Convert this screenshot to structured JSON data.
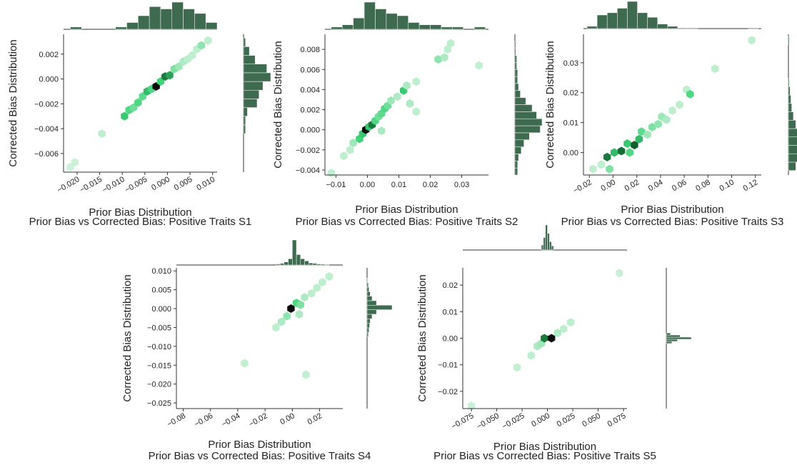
{
  "colors": {
    "hex_light": "#dcf4e2",
    "hex_mid": "#3fd47a",
    "hex_dark": "#0f5a2a",
    "hex_black": "#0a0a0a",
    "marginal": "#3e6b4f"
  },
  "chart_data": [
    {
      "type": "hexbin",
      "caption": "Prior Bias vs Corrected Bias: Positive Traits S1",
      "xlabel": "Prior Bias Distribution",
      "ylabel": "Corrected Bias Distribution",
      "xlim": [
        -0.023,
        0.011
      ],
      "ylim": [
        -0.0075,
        0.0036
      ],
      "xticks": [
        -0.02,
        -0.015,
        -0.01,
        -0.005,
        0.0,
        0.005,
        0.01
      ],
      "xtick_labels": [
        "−0.020",
        "−0.015",
        "−0.010",
        "−0.005",
        "0.000",
        "0.005",
        "0.010"
      ],
      "yticks": [
        -0.006,
        -0.004,
        -0.002,
        0.0,
        0.002
      ],
      "ytick_labels": [
        "−0.006",
        "−0.004",
        "−0.002",
        "0.000",
        "0.002"
      ],
      "x_rotated": true,
      "points": [
        {
          "x": -0.0215,
          "y": -0.0071,
          "d": 0.05
        },
        {
          "x": -0.0205,
          "y": -0.0067,
          "d": 0.05
        },
        {
          "x": -0.0145,
          "y": -0.0044,
          "d": 0.1
        },
        {
          "x": -0.0095,
          "y": -0.003,
          "d": 0.55
        },
        {
          "x": -0.0085,
          "y": -0.0025,
          "d": 0.45
        },
        {
          "x": -0.0075,
          "y": -0.0023,
          "d": 0.35
        },
        {
          "x": -0.0065,
          "y": -0.0019,
          "d": 0.45
        },
        {
          "x": -0.0055,
          "y": -0.0014,
          "d": 0.4
        },
        {
          "x": -0.0045,
          "y": -0.001,
          "d": 0.6
        },
        {
          "x": -0.0035,
          "y": -0.0008,
          "d": 0.45
        },
        {
          "x": -0.0025,
          "y": -0.0006,
          "d": 1.0
        },
        {
          "x": -0.0015,
          "y": -0.0002,
          "d": 0.5
        },
        {
          "x": -0.0005,
          "y": 0.0002,
          "d": 0.85
        },
        {
          "x": 0.0005,
          "y": 0.0003,
          "d": 0.7
        },
        {
          "x": 0.0015,
          "y": 0.0008,
          "d": 0.3
        },
        {
          "x": 0.0025,
          "y": 0.001,
          "d": 0.2
        },
        {
          "x": 0.0035,
          "y": 0.0014,
          "d": 0.15
        },
        {
          "x": 0.0045,
          "y": 0.0016,
          "d": 0.1
        },
        {
          "x": 0.0055,
          "y": 0.0019,
          "d": 0.1
        },
        {
          "x": 0.0065,
          "y": 0.0024,
          "d": 0.1
        },
        {
          "x": 0.0075,
          "y": 0.0027,
          "d": 0.25
        },
        {
          "x": 0.009,
          "y": 0.0031,
          "d": 0.1
        }
      ],
      "x_hist": {
        "edges": [
          -0.0215,
          -0.019,
          -0.0165,
          -0.014,
          -0.0115,
          -0.009,
          -0.0065,
          -0.004,
          -0.0015,
          0.001,
          0.0035,
          0.006,
          0.0085,
          0.011
        ],
        "counts": [
          1,
          0,
          0,
          0,
          1,
          3,
          6,
          10,
          9,
          12,
          9,
          7,
          3
        ]
      },
      "y_hist": {
        "edges": [
          -0.0072,
          -0.0065,
          -0.0058,
          -0.0051,
          -0.0044,
          -0.0037,
          -0.003,
          -0.0023,
          -0.0016,
          -0.0009,
          -0.0002,
          0.0005,
          0.0012,
          0.0019,
          0.0026,
          0.0033
        ],
        "counts": [
          0,
          0,
          0,
          0,
          0.2,
          0.2,
          0.4,
          1.4,
          1.6,
          2,
          2.8,
          2.4,
          1.2,
          0.6,
          0.2
        ]
      }
    },
    {
      "type": "hexbin",
      "caption": "Prior Bias vs Corrected Bias: Positive Traits S2",
      "xlabel": "Prior Bias Distribution",
      "ylabel": "Corrected Bias Distribution",
      "xlim": [
        -0.0135,
        0.0385
      ],
      "ylim": [
        -0.0045,
        0.0095
      ],
      "xticks": [
        -0.01,
        0.0,
        0.01,
        0.02,
        0.03
      ],
      "xtick_labels": [
        "−0.01",
        "0.00",
        "0.01",
        "0.02",
        "0.03"
      ],
      "yticks": [
        -0.004,
        -0.002,
        0.0,
        0.002,
        0.004,
        0.006,
        0.008
      ],
      "ytick_labels": [
        "−0.004",
        "−0.002",
        "0.000",
        "0.002",
        "0.004",
        "0.006",
        "0.008"
      ],
      "x_rotated": false,
      "points": [
        {
          "x": -0.0115,
          "y": -0.0043,
          "d": 0.1
        },
        {
          "x": -0.0075,
          "y": -0.0026,
          "d": 0.1
        },
        {
          "x": -0.0055,
          "y": -0.002,
          "d": 0.1
        },
        {
          "x": -0.0045,
          "y": -0.0013,
          "d": 0.2
        },
        {
          "x": -0.0025,
          "y": -0.0009,
          "d": 0.5
        },
        {
          "x": -0.0015,
          "y": -0.0004,
          "d": 0.55
        },
        {
          "x": -0.0005,
          "y": 0.0,
          "d": 1.0
        },
        {
          "x": 0.0005,
          "y": 0.0003,
          "d": 0.55
        },
        {
          "x": 0.0015,
          "y": 0.0005,
          "d": 0.85
        },
        {
          "x": 0.0025,
          "y": 0.0009,
          "d": 0.45
        },
        {
          "x": 0.0035,
          "y": 0.0013,
          "d": 0.35
        },
        {
          "x": 0.0045,
          "y": 0.0016,
          "d": 0.4
        },
        {
          "x": 0.0055,
          "y": 0.0021,
          "d": 0.45
        },
        {
          "x": 0.0065,
          "y": 0.0024,
          "d": 0.35
        },
        {
          "x": 0.0075,
          "y": 0.0029,
          "d": 0.2
        },
        {
          "x": 0.0095,
          "y": 0.0033,
          "d": 0.15
        },
        {
          "x": 0.0115,
          "y": 0.0039,
          "d": 0.55
        },
        {
          "x": 0.0125,
          "y": 0.0044,
          "d": 0.15
        },
        {
          "x": 0.0135,
          "y": 0.0026,
          "d": 0.15
        },
        {
          "x": 0.0155,
          "y": 0.0018,
          "d": 0.1
        },
        {
          "x": 0.0045,
          "y": -0.0001,
          "d": 0.15
        },
        {
          "x": 0.0155,
          "y": 0.0048,
          "d": 0.1
        },
        {
          "x": 0.0225,
          "y": 0.007,
          "d": 0.25
        },
        {
          "x": 0.0245,
          "y": 0.0072,
          "d": 0.15
        },
        {
          "x": 0.0255,
          "y": 0.008,
          "d": 0.1
        },
        {
          "x": 0.0265,
          "y": 0.0086,
          "d": 0.1
        },
        {
          "x": 0.0355,
          "y": 0.0064,
          "d": 0.08
        }
      ],
      "x_hist": {
        "edges": [
          -0.0115,
          -0.008,
          -0.0045,
          -0.001,
          0.0025,
          0.006,
          0.0095,
          0.013,
          0.0165,
          0.02,
          0.0235,
          0.027,
          0.0305,
          0.034,
          0.0375
        ],
        "counts": [
          1,
          2,
          5,
          12,
          9,
          7,
          6,
          3,
          2,
          2,
          1,
          1,
          0,
          1
        ]
      },
      "y_hist": {
        "edges": [
          -0.0045,
          -0.0038,
          -0.0031,
          -0.0024,
          -0.0017,
          -0.001,
          -0.0003,
          0.0004,
          0.0011,
          0.0018,
          0.0025,
          0.0032,
          0.0039,
          0.0046,
          0.0053,
          0.006,
          0.0067,
          0.0074,
          0.0081,
          0.0088
        ],
        "counts": [
          0.3,
          0.3,
          0.4,
          0.7,
          1.0,
          1.6,
          2.8,
          3.0,
          2.4,
          1.9,
          1.2,
          0.6,
          0.4,
          0.3,
          0.3,
          0.2,
          0.2,
          0.1,
          0.1
        ]
      }
    },
    {
      "type": "hexbin",
      "caption": "Prior Bias vs Corrected Bias: Positive Traits S3",
      "xlabel": "Prior Bias Distribution",
      "ylabel": "Corrected Bias Distribution",
      "xlim": [
        -0.025,
        0.125
      ],
      "ylim": [
        -0.0075,
        0.0395
      ],
      "xticks": [
        -0.02,
        0.0,
        0.02,
        0.04,
        0.06,
        0.08,
        0.1,
        0.12
      ],
      "xtick_labels": [
        "−0.02",
        "0.00",
        "0.02",
        "0.04",
        "0.06",
        "0.08",
        "0.10",
        "0.12"
      ],
      "yticks": [
        0.0,
        0.01,
        0.02,
        0.03
      ],
      "ytick_labels": [
        "0.00",
        "0.01",
        "0.02",
        "0.03"
      ],
      "x_rotated": true,
      "points": [
        {
          "x": -0.017,
          "y": -0.0055,
          "d": 0.1
        },
        {
          "x": -0.01,
          "y": -0.004,
          "d": 0.1
        },
        {
          "x": -0.003,
          "y": -0.0055,
          "d": 0.3
        },
        {
          "x": -0.005,
          "y": -0.0015,
          "d": 0.85
        },
        {
          "x": 0.001,
          "y": 0.0,
          "d": 0.6
        },
        {
          "x": 0.007,
          "y": 0.0005,
          "d": 0.9
        },
        {
          "x": 0.012,
          "y": 0.003,
          "d": 0.55
        },
        {
          "x": 0.014,
          "y": 0.0,
          "d": 0.45
        },
        {
          "x": 0.018,
          "y": 0.0025,
          "d": 0.95
        },
        {
          "x": 0.022,
          "y": 0.0045,
          "d": 0.6
        },
        {
          "x": 0.024,
          "y": 0.007,
          "d": 0.4
        },
        {
          "x": 0.029,
          "y": 0.006,
          "d": 0.2
        },
        {
          "x": 0.033,
          "y": 0.0085,
          "d": 0.3
        },
        {
          "x": 0.038,
          "y": 0.0095,
          "d": 0.25
        },
        {
          "x": 0.041,
          "y": 0.012,
          "d": 0.2
        },
        {
          "x": 0.045,
          "y": 0.011,
          "d": 0.15
        },
        {
          "x": 0.05,
          "y": 0.014,
          "d": 0.1
        },
        {
          "x": 0.056,
          "y": 0.016,
          "d": 0.1
        },
        {
          "x": 0.062,
          "y": 0.021,
          "d": 0.1
        },
        {
          "x": 0.065,
          "y": 0.0195,
          "d": 0.45
        },
        {
          "x": 0.086,
          "y": 0.028,
          "d": 0.1
        },
        {
          "x": 0.117,
          "y": 0.0375,
          "d": 0.1
        }
      ],
      "x_hist": {
        "edges": [
          -0.022,
          -0.0135,
          -0.005,
          0.0035,
          0.012,
          0.0205,
          0.029,
          0.0375,
          0.046,
          0.0545,
          0.063,
          0.0715,
          0.08,
          0.0885,
          0.097,
          0.1055,
          0.114,
          0.1225
        ],
        "counts": [
          1,
          6,
          7,
          9,
          12,
          7,
          5,
          2,
          1,
          0.3,
          0.3,
          0,
          0,
          0,
          0,
          0,
          0.3
        ]
      },
      "y_hist": {
        "edges": [
          -0.006,
          -0.0032,
          -0.0004,
          0.0024,
          0.0052,
          0.008,
          0.0108,
          0.0136,
          0.0164,
          0.0192,
          0.022,
          0.0248,
          0.0276,
          0.0304,
          0.0332,
          0.036,
          0.0388
        ],
        "counts": [
          0.9,
          2.4,
          3.3,
          2.4,
          1.2,
          0.9,
          0.6,
          0.4,
          0.3,
          0.2,
          0.1,
          0,
          0,
          0,
          0,
          0.1
        ]
      }
    },
    {
      "type": "hexbin",
      "caption": "Prior Bias vs Corrected Bias: Positive Traits S4",
      "xlabel": "Prior Bias Distribution",
      "ylabel": "Corrected Bias Distribution",
      "xlim": [
        -0.085,
        0.037
      ],
      "ylim": [
        -0.0265,
        0.0108
      ],
      "xticks": [
        -0.08,
        -0.06,
        -0.04,
        -0.02,
        0.0,
        0.02
      ],
      "xtick_labels": [
        "−0.08",
        "−0.06",
        "−0.04",
        "−0.02",
        "0.00",
        "0.02"
      ],
      "yticks": [
        -0.025,
        -0.02,
        -0.015,
        -0.01,
        -0.005,
        0.0,
        0.005,
        0.01
      ],
      "ytick_labels": [
        "−0.025",
        "−0.020",
        "−0.015",
        "−0.010",
        "−0.005",
        "0.000",
        "0.005",
        "0.010"
      ],
      "x_rotated": true,
      "points": [
        {
          "x": -0.035,
          "y": -0.0145,
          "d": 0.08
        },
        {
          "x": -0.012,
          "y": -0.005,
          "d": 0.1
        },
        {
          "x": -0.008,
          "y": -0.0035,
          "d": 0.15
        },
        {
          "x": -0.004,
          "y": -0.002,
          "d": 0.25
        },
        {
          "x": -0.001,
          "y": 0.0,
          "d": 1.0
        },
        {
          "x": 0.003,
          "y": 0.0015,
          "d": 0.45
        },
        {
          "x": 0.006,
          "y": 0.001,
          "d": 0.3
        },
        {
          "x": 0.005,
          "y": -0.0015,
          "d": 0.15
        },
        {
          "x": 0.009,
          "y": 0.003,
          "d": 0.15
        },
        {
          "x": 0.014,
          "y": 0.004,
          "d": 0.1
        },
        {
          "x": 0.018,
          "y": 0.0055,
          "d": 0.1
        },
        {
          "x": 0.022,
          "y": 0.007,
          "d": 0.1
        },
        {
          "x": 0.027,
          "y": 0.0085,
          "d": 0.1
        },
        {
          "x": 0.01,
          "y": -0.0175,
          "d": 0.08
        }
      ],
      "x_hist": {
        "edges": [
          -0.012,
          -0.009,
          -0.006,
          -0.003,
          0,
          0.003,
          0.006,
          0.009,
          0.012,
          0.015,
          0.018,
          0.021,
          0.024,
          0.027
        ],
        "counts": [
          0.5,
          0.8,
          1.5,
          3,
          12,
          5,
          3,
          2,
          1,
          0.8,
          0.5,
          0.4,
          0.3
        ]
      },
      "y_hist": {
        "edges": [
          -0.0075,
          -0.0063,
          -0.0051,
          -0.0039,
          -0.0027,
          -0.0015,
          -0.0003,
          0.0009,
          0.0021,
          0.0033,
          0.0045,
          0.0057,
          0.0069,
          0.0081
        ],
        "counts": [
          0.2,
          0.3,
          0.4,
          0.5,
          0.8,
          1.5,
          4,
          1.5,
          0.8,
          0.5,
          0.3,
          0.2,
          0.1
        ]
      }
    },
    {
      "type": "hexbin",
      "caption": "Prior Bias vs Corrected Bias: Positive Traits S5",
      "xlabel": "Prior Bias Distribution",
      "ylabel": "Corrected Bias Distribution",
      "xlim": [
        -0.0835,
        0.0785
      ],
      "ylim": [
        -0.0265,
        0.0265
      ],
      "xticks": [
        -0.075,
        -0.05,
        -0.025,
        0.0,
        0.025,
        0.05,
        0.075
      ],
      "xtick_labels": [
        "−0.075",
        "−0.050",
        "−0.025",
        "0.000",
        "0.025",
        "0.050",
        "0.075"
      ],
      "yticks": [
        -0.02,
        -0.01,
        0.0,
        0.01,
        0.02
      ],
      "ytick_labels": [
        "−0.02",
        "−0.01",
        "0.00",
        "0.01",
        "0.02"
      ],
      "x_rotated": true,
      "points": [
        {
          "x": -0.075,
          "y": -0.0255,
          "d": 0.06
        },
        {
          "x": -0.03,
          "y": -0.011,
          "d": 0.08
        },
        {
          "x": -0.016,
          "y": -0.0065,
          "d": 0.1
        },
        {
          "x": -0.01,
          "y": -0.003,
          "d": 0.15
        },
        {
          "x": -0.006,
          "y": -0.002,
          "d": 0.2
        },
        {
          "x": -0.003,
          "y": 0.0,
          "d": 0.85
        },
        {
          "x": 0.004,
          "y": 0.0,
          "d": 1.0
        },
        {
          "x": 0.01,
          "y": 0.002,
          "d": 0.15
        },
        {
          "x": 0.016,
          "y": 0.0035,
          "d": 0.1
        },
        {
          "x": 0.023,
          "y": 0.006,
          "d": 0.1
        },
        {
          "x": 0.071,
          "y": 0.0245,
          "d": 0.06
        }
      ],
      "x_hist": {
        "edges": [
          -0.006,
          -0.004,
          -0.002,
          0,
          0.002,
          0.004,
          0.006
        ],
        "counts": [
          0.6,
          1.5,
          3,
          2,
          1,
          0.5
        ]
      },
      "y_hist": {
        "edges": [
          -0.002,
          -0.0012,
          -0.0004,
          0.0004,
          0.0012,
          0.002
        ],
        "counts": [
          0.4,
          0.8,
          1.8,
          1,
          0.3
        ]
      }
    }
  ]
}
